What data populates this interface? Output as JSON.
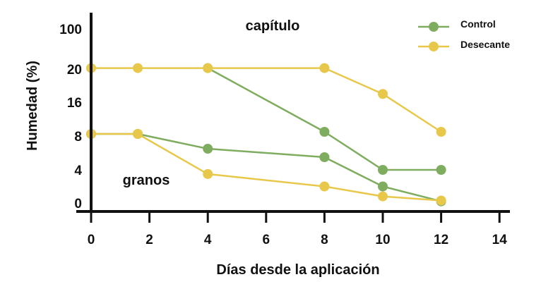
{
  "chart_data": {
    "type": "line",
    "title": "",
    "xlabel": "Días desde la aplicación",
    "ylabel": "Humedad (%)",
    "xlim": [
      0,
      14
    ],
    "x_ticks": [
      "0",
      "2",
      "4",
      "6",
      "8",
      "10",
      "12",
      "14"
    ],
    "y_ticks": [
      "0",
      "4",
      "8",
      "16",
      "20",
      "100"
    ],
    "y_tick_values": [
      0,
      4,
      8,
      16,
      20,
      100
    ],
    "y_scale": "piecewise (ticks unevenly spaced in value)",
    "grid": false,
    "legend_position": "top-right",
    "colors": {
      "Control": "#7fad5f",
      "Desecante": "#e8c84a",
      "axis": "#111111"
    },
    "annotations": [
      {
        "text": "capítulo",
        "x": 7,
        "y": 60
      },
      {
        "text": "granos",
        "x": 1.9,
        "y": 3.5
      }
    ],
    "series": [
      {
        "name": "Control",
        "groups": [
          {
            "x": [
              4,
              8,
              10,
              12
            ],
            "y": [
              22,
              9,
              4,
              4
            ]
          },
          {
            "x": [
              0,
              1.6,
              4,
              8,
              10,
              12
            ],
            "y": [
              8.5,
              8.5,
              6.5,
              5.5,
              2,
              0.2
            ]
          }
        ]
      },
      {
        "name": "Desecante",
        "groups": [
          {
            "x": [
              0,
              1.6,
              4,
              8,
              10,
              12
            ],
            "y": [
              22,
              22,
              22,
              22,
              17,
              9
            ]
          },
          {
            "x": [
              0,
              1.6,
              4,
              8,
              10,
              12
            ],
            "y": [
              8.5,
              8.5,
              3.5,
              2,
              0.8,
              0.3
            ]
          }
        ]
      }
    ]
  }
}
